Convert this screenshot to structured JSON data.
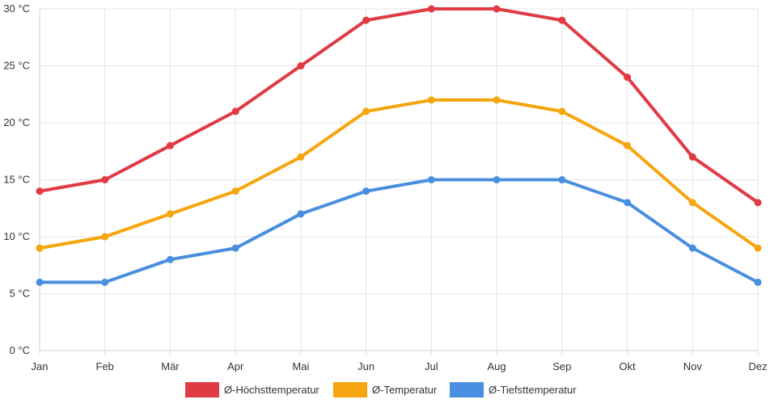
{
  "chart_data": {
    "type": "line",
    "categories": [
      "Jan",
      "Feb",
      "Mär",
      "Apr",
      "Mai",
      "Jun",
      "Jul",
      "Aug",
      "Sep",
      "Okt",
      "Nov",
      "Dez"
    ],
    "series": [
      {
        "name": "Ø-Höchsttemperatur",
        "color": "#e03a45",
        "values": [
          14,
          15,
          18,
          21,
          25,
          29,
          30,
          30,
          29,
          24,
          17,
          13
        ]
      },
      {
        "name": "Ø-Temperatur",
        "color": "#f6a50f",
        "values": [
          9,
          10,
          12,
          14,
          17,
          21,
          22,
          22,
          21,
          18,
          13,
          9
        ]
      },
      {
        "name": "Ø-Tiefsttemperatur",
        "color": "#4a8fdf",
        "values": [
          6,
          6,
          8,
          9,
          12,
          14,
          15,
          15,
          15,
          13,
          9,
          6
        ]
      }
    ],
    "y_ticks": [
      "0 °C",
      "5 °C",
      "10 °C",
      "15 °C",
      "20 °C",
      "25 °C",
      "30 °C"
    ],
    "ylim": [
      0,
      30
    ],
    "grid": true,
    "legend_position": "bottom"
  }
}
